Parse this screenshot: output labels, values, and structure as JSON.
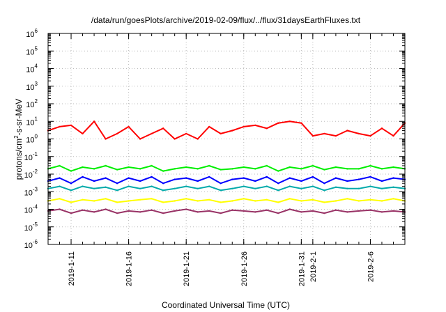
{
  "title": "/data/run/goesPlots/archive/2019-02-09/flux/../flux/31daysEarthFluxes.txt",
  "axes": {
    "xlabel": "Coordinated Universal Time (UTC)",
    "ylabel_pre": "protons/cm",
    "ylabel_sup": "2",
    "ylabel_post": "-s-sr-MeV"
  },
  "chart_data": {
    "type": "line",
    "title": "/data/run/goesPlots/archive/2019-02-09/flux/../flux/31daysEarthFluxes.txt",
    "xlabel": "Coordinated Universal Time (UTC)",
    "ylabel": "protons/cm2-s-sr-MeV",
    "yscale": "log",
    "ylim": [
      1e-06,
      1000000.0
    ],
    "xlim": [
      "2019-01-09",
      "2019-02-09"
    ],
    "grid": true,
    "x_ticks": [
      "2019-1-11",
      "2019-1-16",
      "2019-1-21",
      "2019-1-26",
      "2019-1-31",
      "2019-2-1",
      "2019-2-6"
    ],
    "y_ticks": [
      {
        "base": "10",
        "exp": "-6"
      },
      {
        "base": "10",
        "exp": "-5"
      },
      {
        "base": "10",
        "exp": "-4"
      },
      {
        "base": "10",
        "exp": "-3"
      },
      {
        "base": "10",
        "exp": "-2"
      },
      {
        "base": "10",
        "exp": "-1"
      },
      {
        "base": "10",
        "exp": "0"
      },
      {
        "base": "10",
        "exp": "1"
      },
      {
        "base": "10",
        "exp": "2"
      },
      {
        "base": "10",
        "exp": "3"
      },
      {
        "base": "10",
        "exp": "4"
      },
      {
        "base": "10",
        "exp": "5"
      },
      {
        "base": "10",
        "exp": "6"
      }
    ],
    "x_dates": [
      "2019-01-09",
      "2019-01-10",
      "2019-01-11",
      "2019-01-12",
      "2019-01-13",
      "2019-01-14",
      "2019-01-15",
      "2019-01-16",
      "2019-01-17",
      "2019-01-18",
      "2019-01-19",
      "2019-01-20",
      "2019-01-21",
      "2019-01-22",
      "2019-01-23",
      "2019-01-24",
      "2019-01-25",
      "2019-01-26",
      "2019-01-27",
      "2019-01-28",
      "2019-01-29",
      "2019-01-30",
      "2019-01-31",
      "2019-02-01",
      "2019-02-02",
      "2019-02-03",
      "2019-02-04",
      "2019-02-05",
      "2019-02-06",
      "2019-02-07",
      "2019-02-08",
      "2019-02-09"
    ],
    "series": [
      {
        "color": "#ff0000",
        "values": [
          3,
          5,
          6,
          2,
          10,
          1,
          2,
          5,
          1,
          2,
          4,
          1,
          2,
          1,
          5,
          2,
          3,
          5,
          6,
          4,
          8,
          10,
          8,
          1.5,
          2,
          1.5,
          3,
          2,
          1.5,
          4,
          1.5,
          8
        ]
      },
      {
        "color": "#00ee00",
        "values": [
          0.02,
          0.03,
          0.015,
          0.025,
          0.02,
          0.03,
          0.018,
          0.025,
          0.02,
          0.03,
          0.015,
          0.02,
          0.025,
          0.02,
          0.03,
          0.018,
          0.02,
          0.025,
          0.02,
          0.03,
          0.015,
          0.025,
          0.02,
          0.03,
          0.018,
          0.025,
          0.02,
          0.02,
          0.03,
          0.02,
          0.025,
          0.02
        ]
      },
      {
        "color": "#0000ff",
        "values": [
          0.004,
          0.006,
          0.003,
          0.007,
          0.004,
          0.006,
          0.003,
          0.006,
          0.004,
          0.007,
          0.003,
          0.005,
          0.006,
          0.004,
          0.007,
          0.003,
          0.005,
          0.006,
          0.004,
          0.007,
          0.003,
          0.006,
          0.004,
          0.007,
          0.003,
          0.006,
          0.004,
          0.005,
          0.007,
          0.004,
          0.006,
          0.005
        ]
      },
      {
        "color": "#00aaaa",
        "values": [
          0.0015,
          0.002,
          0.0012,
          0.002,
          0.0015,
          0.0018,
          0.0012,
          0.002,
          0.0015,
          0.002,
          0.0012,
          0.0015,
          0.002,
          0.0015,
          0.002,
          0.0012,
          0.0015,
          0.002,
          0.0015,
          0.002,
          0.0012,
          0.002,
          0.0015,
          0.002,
          0.0012,
          0.0018,
          0.0015,
          0.0015,
          0.002,
          0.0015,
          0.0018,
          0.0015
        ]
      },
      {
        "color": "#ffff00",
        "values": [
          0.0003,
          0.0004,
          0.00025,
          0.00035,
          0.0003,
          0.0004,
          0.00025,
          0.0003,
          0.00035,
          0.0004,
          0.00025,
          0.0003,
          0.0004,
          0.0003,
          0.00035,
          0.00025,
          0.0003,
          0.0004,
          0.0003,
          0.00035,
          0.00025,
          0.0004,
          0.0003,
          0.00035,
          0.00025,
          0.0003,
          0.0004,
          0.0003,
          0.00035,
          0.0003,
          0.0004,
          0.0003
        ]
      },
      {
        "color": "#993366",
        "values": [
          8e-05,
          0.0001,
          6e-05,
          9e-05,
          7e-05,
          0.0001,
          6e-05,
          8e-05,
          7e-05,
          9e-05,
          6e-05,
          8e-05,
          0.0001,
          7e-05,
          8e-05,
          6e-05,
          9e-05,
          8e-05,
          7e-05,
          9e-05,
          6e-05,
          0.0001,
          7e-05,
          8e-05,
          6e-05,
          9e-05,
          7e-05,
          8e-05,
          9e-05,
          7e-05,
          8e-05,
          7e-05
        ]
      }
    ]
  }
}
